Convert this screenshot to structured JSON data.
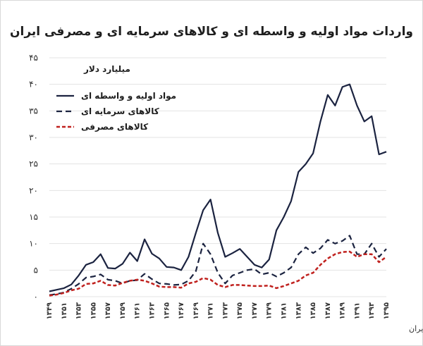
{
  "chart_data": {
    "type": "line",
    "title": "واردات مواد اولیه و واسطه ای و کالاهای سرمایه ای و مصرفی ایران",
    "ylabel": "میلیارد دلار",
    "xlabel": "",
    "ylim": [
      0,
      45
    ],
    "yticks": [
      "۰",
      "۵",
      "۱۰",
      "۱۵",
      "۲۰",
      "۲۵",
      "۳۰",
      "۳۵",
      "۴۰",
      "۴۵"
    ],
    "ytick_values": [
      0,
      5,
      10,
      15,
      20,
      25,
      30,
      35,
      40,
      45
    ],
    "x": [
      1349,
      1350,
      1351,
      1352,
      1353,
      1354,
      1355,
      1356,
      1357,
      1358,
      1359,
      1360,
      1361,
      1362,
      1363,
      1364,
      1365,
      1366,
      1367,
      1368,
      1369,
      1370,
      1371,
      1372,
      1373,
      1374,
      1375,
      1376,
      1377,
      1378,
      1379,
      1380,
      1381,
      1382,
      1383,
      1384,
      1385,
      1386,
      1387,
      1388,
      1389,
      1390,
      1391,
      1392,
      1393,
      1394,
      1395
    ],
    "xtick_values": [
      1349,
      1351,
      1353,
      1355,
      1357,
      1359,
      1361,
      1363,
      1365,
      1367,
      1369,
      1371,
      1373,
      1375,
      1377,
      1379,
      1381,
      1383,
      1385,
      1387,
      1389,
      1391,
      1393,
      1395
    ],
    "xtick_labels": [
      "۱۳۴۹",
      "۱۳۵۱",
      "۱۳۵۳",
      "۱۳۵۵",
      "۱۳۵۷",
      "۱۳۵۹",
      "۱۳۶۱",
      "۱۳۶۳",
      "۱۳۶۵",
      "۱۳۶۷",
      "۱۳۶۹",
      "۱۳۷۱",
      "۱۳۷۳",
      "۱۳۷۵",
      "۱۳۷۷",
      "۱۳۷۹",
      "۱۳۸۱",
      "۱۳۸۳",
      "۱۳۸۵",
      "۱۳۸۷",
      "۱۳۸۹",
      "۱۳۹۱",
      "۱۳۹۳",
      "۱۳۹۵"
    ],
    "series": [
      {
        "name": "مواد اولیه و واسطه ای",
        "color": "#1b2340",
        "style": "solid",
        "values": [
          1.0,
          1.3,
          1.6,
          2.3,
          4.0,
          6.0,
          6.5,
          8.0,
          5.4,
          5.3,
          6.2,
          8.3,
          6.7,
          10.8,
          8.1,
          7.2,
          5.6,
          5.5,
          5.0,
          7.5,
          12.0,
          16.3,
          18.3,
          12.0,
          7.5,
          8.2,
          9.0,
          7.5,
          6.0,
          5.5,
          7.0,
          12.5,
          15.0,
          18.0,
          23.5,
          25.0,
          27.0,
          33.0,
          38.0,
          36.0,
          39.5,
          40.0,
          36.0,
          33.0,
          34.0,
          26.8,
          27.3
        ]
      },
      {
        "name": "کالاهای سرمایه ای",
        "color": "#1b2340",
        "style": "dashed",
        "values": [
          0.3,
          0.5,
          0.8,
          1.5,
          2.4,
          3.6,
          3.8,
          4.2,
          3.2,
          3.0,
          2.5,
          3.0,
          3.1,
          4.3,
          3.3,
          2.5,
          2.4,
          2.2,
          2.3,
          3.0,
          4.8,
          10.0,
          8.0,
          4.5,
          2.5,
          4.0,
          4.5,
          5.0,
          5.2,
          4.2,
          4.5,
          3.8,
          4.5,
          5.5,
          8.0,
          9.3,
          8.2,
          9.1,
          10.7,
          10.0,
          10.5,
          11.5,
          8.0,
          8.0,
          10.0,
          7.5,
          9.0
        ]
      },
      {
        "name": "کالاهای مصرفی",
        "color": "#c0211e",
        "style": "dashed",
        "values": [
          0.2,
          0.4,
          0.7,
          1.2,
          1.5,
          2.4,
          2.5,
          3.0,
          2.2,
          2.1,
          2.6,
          3.0,
          3.2,
          3.0,
          2.5,
          1.9,
          1.8,
          1.8,
          1.7,
          2.5,
          2.8,
          3.5,
          3.2,
          2.2,
          1.8,
          2.2,
          2.2,
          2.1,
          2.0,
          2.0,
          2.1,
          1.6,
          2.0,
          2.5,
          3.0,
          4.0,
          4.5,
          6.0,
          7.2,
          8.0,
          8.4,
          8.5,
          7.5,
          8.0,
          8.0,
          6.5,
          7.5
        ]
      }
    ],
    "legend": "top-left",
    "grid": true,
    "source": "تحلیل و استنتاج: احسان سلطانی بر اساس داده های بانک مرکزی ایران"
  }
}
